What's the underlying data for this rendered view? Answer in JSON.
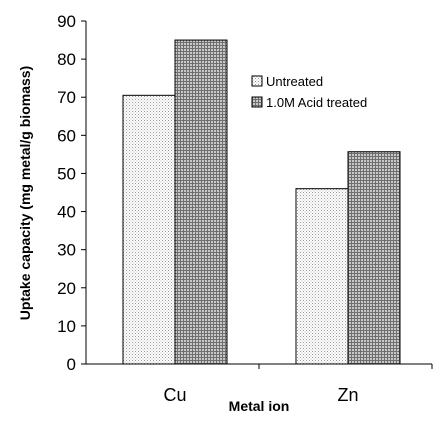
{
  "chart_data": {
    "type": "bar",
    "title": "",
    "xlabel": "Metal ion",
    "ylabel": "Uptake capacity (mg metal/g biomass)",
    "categories": [
      "Cu",
      "Zn"
    ],
    "ylim": [
      0,
      90
    ],
    "yticks": [
      0,
      10,
      20,
      30,
      40,
      50,
      60,
      70,
      80,
      90
    ],
    "grid": false,
    "legend_position": "right",
    "series": [
      {
        "name": "Untreated",
        "values": [
          70.5,
          46
        ],
        "pattern": "light-dots",
        "color": "#e8e8e8"
      },
      {
        "name": "1.0M Acid treated",
        "values": [
          85,
          55.7
        ],
        "pattern": "dark-grid",
        "color": "#9a9a9a"
      }
    ]
  }
}
